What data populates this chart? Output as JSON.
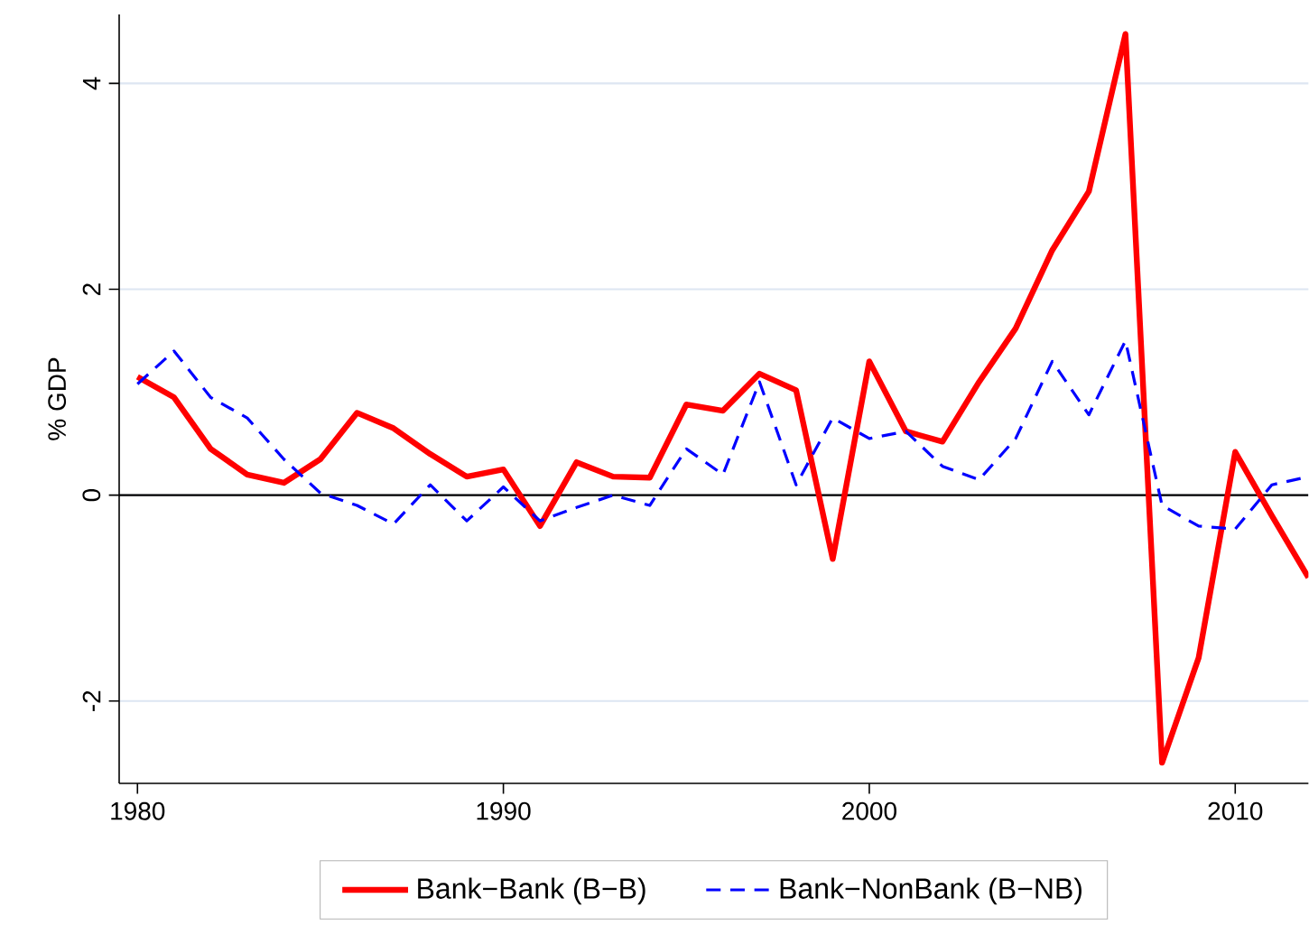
{
  "chart_data": {
    "type": "line",
    "ylabel": "% GDP",
    "x": [
      1980,
      1981,
      1982,
      1983,
      1984,
      1985,
      1986,
      1987,
      1988,
      1989,
      1990,
      1991,
      1992,
      1993,
      1994,
      1995,
      1996,
      1997,
      1998,
      1999,
      2000,
      2001,
      2002,
      2003,
      2004,
      2005,
      2006,
      2007,
      2008,
      2009,
      2010,
      2011,
      2012
    ],
    "series": [
      {
        "name": "Bank−Bank (B−B)",
        "color": "#ff0000",
        "line_style": "solid",
        "values": [
          1.15,
          0.95,
          0.45,
          0.2,
          0.12,
          0.35,
          0.8,
          0.65,
          0.4,
          0.18,
          0.25,
          -0.3,
          0.32,
          0.18,
          0.17,
          0.88,
          0.82,
          1.18,
          1.02,
          -0.62,
          1.3,
          0.62,
          0.52,
          1.1,
          1.62,
          2.38,
          2.95,
          4.48,
          -2.6,
          -1.58,
          0.42,
          -0.2,
          -0.8
        ]
      },
      {
        "name": "Bank−NonBank (B−NB)",
        "color": "#0000ff",
        "line_style": "dashed",
        "values": [
          1.08,
          1.4,
          0.95,
          0.75,
          0.35,
          0.02,
          -0.1,
          -0.28,
          0.1,
          -0.25,
          0.08,
          -0.25,
          -0.12,
          0.0,
          -0.1,
          0.45,
          0.2,
          1.1,
          0.1,
          0.75,
          0.55,
          0.62,
          0.28,
          0.15,
          0.55,
          1.3,
          0.78,
          1.5,
          -0.1,
          -0.3,
          -0.33,
          0.1,
          0.18
        ]
      }
    ],
    "xlim": [
      1979.5,
      2012
    ],
    "ylim": [
      -2.8,
      4.67
    ],
    "xticks": [
      1980,
      1990,
      2000,
      2010
    ],
    "yticks": [
      -2,
      0,
      2,
      4
    ],
    "grid": "y",
    "legend": "bottom",
    "marker": "none",
    "ref_lines": [
      {
        "axis": "y",
        "value": 0,
        "color": "#000000"
      }
    ]
  }
}
